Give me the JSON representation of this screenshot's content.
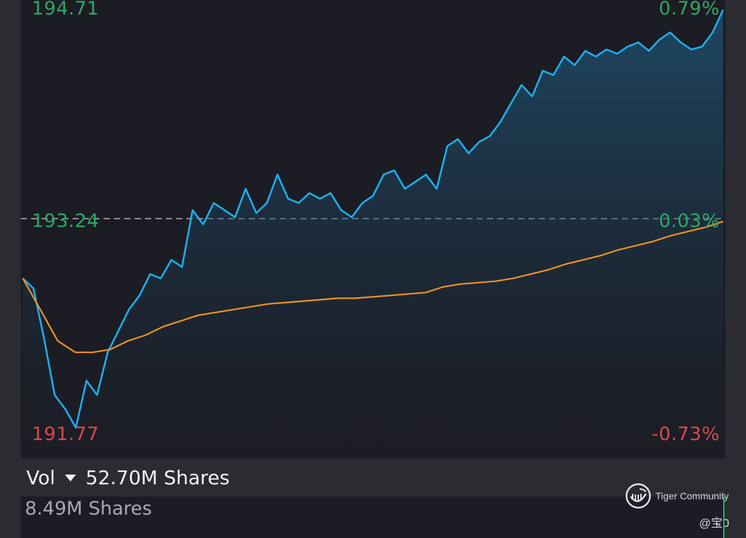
{
  "chart": {
    "price_high": "194.71",
    "price_prev_close": "193.24",
    "price_low": "191.77",
    "pct_high": "0.79%",
    "pct_prev_close": "0.03%",
    "pct_low": "-0.73%"
  },
  "colors": {
    "price_line": "#1eb0f0",
    "avg_line": "#f0951e",
    "up_text": "#2fa766",
    "down_text": "#d9494d",
    "ref_line": "#8a8f99"
  },
  "volume": {
    "label": "Vol",
    "dropdown_icon": "caret-down-icon",
    "total": "52.70M Shares",
    "current": "8.49M Shares"
  },
  "watermark": {
    "text": "Tiger Community",
    "icon": "tiger-logo-icon",
    "handle": "@宝0"
  },
  "chart_data": {
    "type": "line",
    "ylim": [
      191.77,
      194.71
    ],
    "reference_price": 193.24,
    "series": [
      {
        "values": [
          192.82,
          192.75,
          192.4,
          192.0,
          191.9,
          191.77,
          192.1,
          192.0,
          192.3,
          192.45,
          192.6,
          192.7,
          192.85,
          192.82,
          192.95,
          192.9,
          193.3,
          193.2,
          193.35,
          193.3,
          193.25,
          193.45,
          193.28,
          193.35,
          193.55,
          193.38,
          193.35,
          193.42,
          193.38,
          193.42,
          193.3,
          193.25,
          193.35,
          193.4,
          193.55,
          193.58,
          193.45,
          193.5,
          193.55,
          193.45,
          193.75,
          193.8,
          193.7,
          193.78,
          193.82,
          193.92,
          194.05,
          194.18,
          194.1,
          194.28,
          194.25,
          194.38,
          194.32,
          194.42,
          194.38,
          194.43,
          194.4,
          194.45,
          194.48,
          194.42,
          194.5,
          194.55,
          194.48,
          194.43,
          194.45,
          194.55,
          194.71
        ],
        "color": "#1eb0f0"
      },
      {
        "values": [
          192.82,
          192.6,
          192.38,
          192.3,
          192.3,
          192.32,
          192.38,
          192.42,
          192.48,
          192.52,
          192.56,
          192.58,
          192.6,
          192.62,
          192.64,
          192.65,
          192.66,
          192.67,
          192.68,
          192.68,
          192.69,
          192.7,
          192.71,
          192.72,
          192.76,
          192.78,
          192.79,
          192.8,
          192.82,
          192.85,
          192.88,
          192.92,
          192.95,
          192.98,
          193.02,
          193.05,
          193.08,
          193.12,
          193.15,
          193.18,
          193.22
        ],
        "color": "#f0951e"
      }
    ]
  }
}
